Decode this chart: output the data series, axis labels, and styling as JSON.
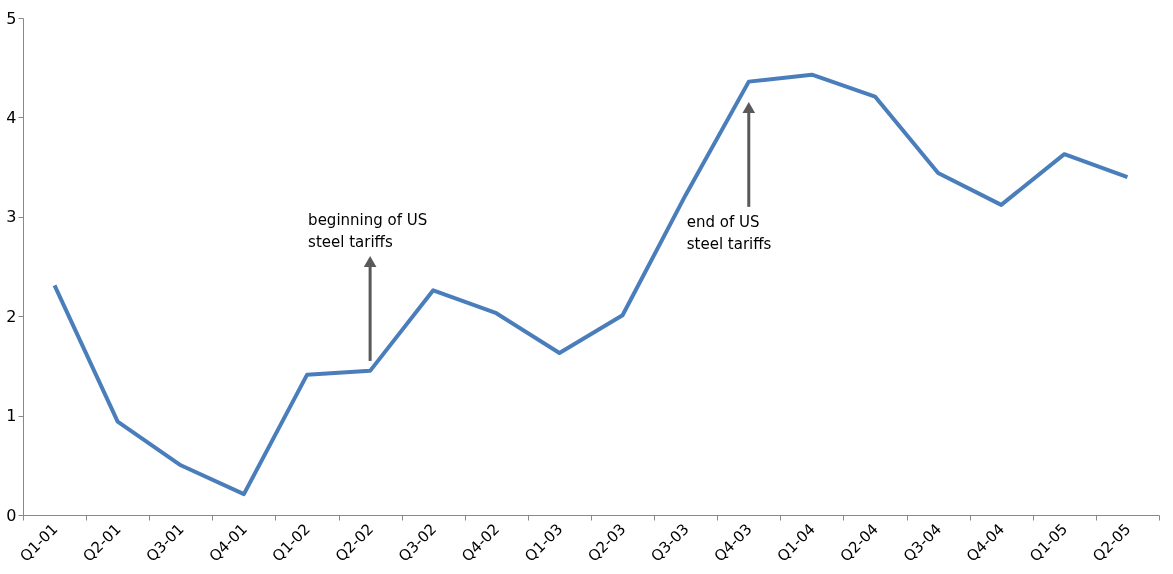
{
  "chart_data": {
    "type": "line",
    "categories": [
      "Q1-01",
      "Q2-01",
      "Q3-01",
      "Q4-01",
      "Q1-02",
      "Q2-02",
      "Q3-02",
      "Q4-02",
      "Q1-03",
      "Q2-03",
      "Q3-03",
      "Q4-03",
      "Q1-04",
      "Q2-04",
      "Q3-04",
      "Q4-04",
      "Q1-05",
      "Q2-05"
    ],
    "series": [
      {
        "color": "#4a7ebb",
        "values": [
          2.31,
          0.94,
          0.5,
          0.21,
          1.41,
          1.45,
          2.26,
          2.03,
          1.63,
          2.01,
          3.22,
          4.36,
          4.43,
          4.21,
          3.44,
          3.12,
          3.63,
          3.4
        ]
      }
    ],
    "ylim": [
      0,
      5
    ],
    "yticks": [
      0,
      1,
      2,
      3,
      4,
      5
    ],
    "grid": false,
    "marker": "none",
    "line_style": "solid",
    "annotations": [
      {
        "text": "beginning of US\nsteel tariffs",
        "x": "Q2-02",
        "y": 2.55
      },
      {
        "text": "end of US\nsteel tariffs",
        "x": "Q4-03",
        "y": 4.1
      }
    ]
  }
}
